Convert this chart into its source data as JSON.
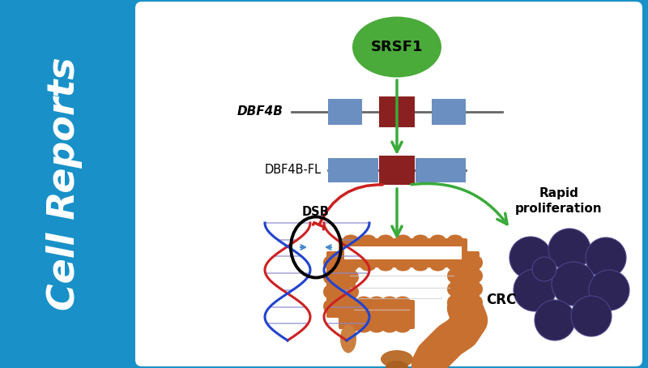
{
  "bg_color": "#1991c8",
  "panel_bg": "#ffffff",
  "sidebar_text": "Cell Reports",
  "sidebar_color": "#ffffff",
  "sidebar_fontsize": 33,
  "srsf1_color": "#4aaa3a",
  "srsf1_text": "SRSF1",
  "bar_blue": "#6b8fc0",
  "bar_red": "#8b2020",
  "green_arrow_color": "#3aaa3a",
  "red_arrow_color": "#cc2020",
  "tumor_color": "#2d2555",
  "tumor_edge": "#4a4488",
  "intestine_color": "#c87030",
  "intestine_dark": "#8b4a10",
  "intestine_inner": "#e09050",
  "dsb_label": "DSB",
  "rapid_label": "Rapid\nproliferation",
  "crc_label": "CRC",
  "dbf4b_label": "DBF4B",
  "dbf4b_fl_label": "DBF4B-FL"
}
